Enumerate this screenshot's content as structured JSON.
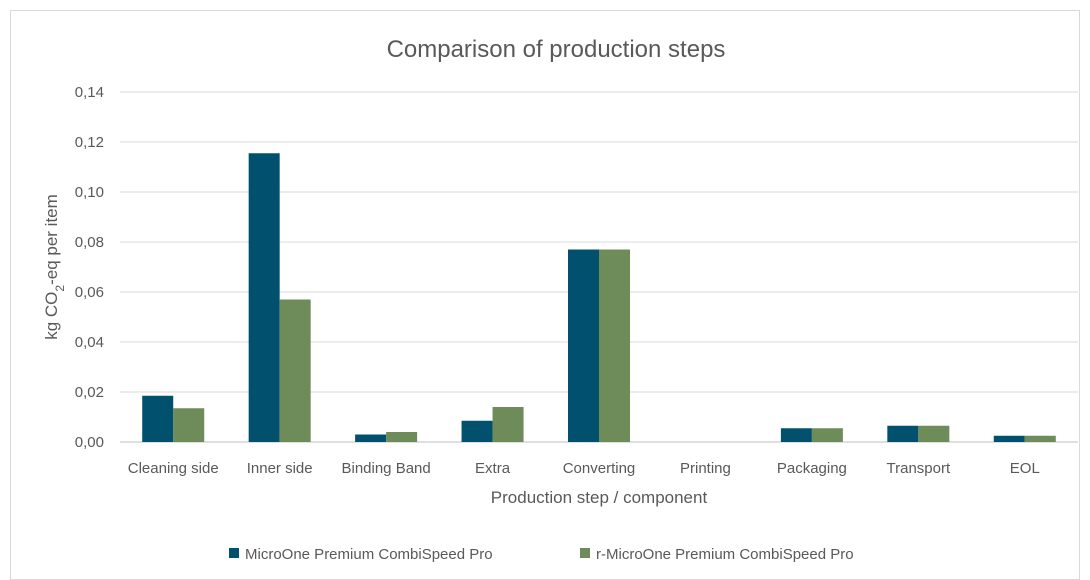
{
  "chart_data": {
    "type": "bar",
    "title": "Comparison of production steps",
    "xlabel": "Production step / component",
    "ylabel": {
      "prefix": "kg CO",
      "sub": "2",
      "suffix": "-eq per item"
    },
    "ylim": [
      0,
      0.14
    ],
    "yticks": [
      "0,00",
      "0,02",
      "0,04",
      "0,06",
      "0,08",
      "0,10",
      "0,12",
      "0,14"
    ],
    "grid": true,
    "legend_position": "bottom",
    "categories": [
      "Cleaning side",
      "Inner side",
      "Binding Band",
      "Extra",
      "Converting",
      "Printing",
      "Packaging",
      "Transport",
      "EOL"
    ],
    "series": [
      {
        "name": "MicroOne Premium CombiSpeed Pro",
        "color": "#00506e",
        "values": [
          0.0185,
          0.1155,
          0.003,
          0.0085,
          0.077,
          0.0,
          0.0055,
          0.0065,
          0.0025
        ]
      },
      {
        "name": "r-MicroOne Premium CombiSpeed Pro",
        "color": "#6e8c5a",
        "values": [
          0.0135,
          0.057,
          0.004,
          0.014,
          0.077,
          0.0,
          0.0055,
          0.0065,
          0.0025
        ]
      }
    ]
  }
}
